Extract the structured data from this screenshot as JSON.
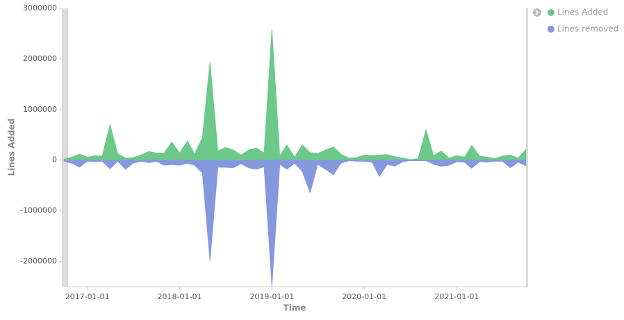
{
  "chart_data": {
    "type": "area",
    "xlabel": "Time",
    "ylabel": "Lines Added",
    "x": [
      "2016-10-01",
      "2016-11-01",
      "2016-12-01",
      "2017-01-01",
      "2017-02-01",
      "2017-03-01",
      "2017-04-01",
      "2017-05-01",
      "2017-06-01",
      "2017-07-01",
      "2017-08-01",
      "2017-09-01",
      "2017-10-01",
      "2017-11-01",
      "2017-12-01",
      "2018-01-01",
      "2018-02-01",
      "2018-03-01",
      "2018-04-01",
      "2018-05-01",
      "2018-06-01",
      "2018-07-01",
      "2018-08-01",
      "2018-09-01",
      "2018-10-01",
      "2018-11-01",
      "2018-12-01",
      "2019-01-01",
      "2019-02-01",
      "2019-03-01",
      "2019-04-01",
      "2019-05-01",
      "2019-06-01",
      "2019-07-01",
      "2019-08-01",
      "2019-09-01",
      "2019-10-01",
      "2019-11-01",
      "2019-12-01",
      "2020-01-01",
      "2020-02-01",
      "2020-03-01",
      "2020-04-01",
      "2020-05-01",
      "2020-06-01",
      "2020-07-01",
      "2020-08-01",
      "2020-09-01",
      "2020-10-01",
      "2020-11-01",
      "2020-12-01",
      "2021-01-01",
      "2021-02-01",
      "2021-03-01",
      "2021-04-01",
      "2021-05-01",
      "2021-06-01",
      "2021-07-01",
      "2021-08-01",
      "2021-09-01",
      "2021-10-01"
    ],
    "series": [
      {
        "name": "Lines Added",
        "color": "#6cc98a",
        "values": [
          20000,
          60000,
          120000,
          60000,
          90000,
          80000,
          700000,
          130000,
          40000,
          50000,
          100000,
          170000,
          140000,
          140000,
          360000,
          140000,
          380000,
          120000,
          450000,
          1930000,
          180000,
          250000,
          200000,
          100000,
          200000,
          240000,
          140000,
          2580000,
          80000,
          300000,
          60000,
          300000,
          150000,
          130000,
          200000,
          260000,
          120000,
          40000,
          50000,
          100000,
          90000,
          100000,
          110000,
          70000,
          40000,
          10000,
          30000,
          600000,
          90000,
          180000,
          40000,
          90000,
          60000,
          290000,
          80000,
          60000,
          30000,
          80000,
          100000,
          40000,
          210000
        ]
      },
      {
        "name": "Lines removed",
        "color": "#8598de",
        "values": [
          -20000,
          -60000,
          -140000,
          -20000,
          -30000,
          -20000,
          -170000,
          -20000,
          -180000,
          -60000,
          -20000,
          -50000,
          -20000,
          -100000,
          -90000,
          -100000,
          -60000,
          -100000,
          -250000,
          -1980000,
          -140000,
          -140000,
          -150000,
          -70000,
          -150000,
          -180000,
          -130000,
          -2480000,
          -80000,
          -180000,
          -60000,
          -220000,
          -640000,
          -80000,
          -180000,
          -290000,
          -60000,
          -10000,
          -20000,
          -20000,
          -40000,
          -320000,
          -80000,
          -120000,
          -30000,
          -10000,
          -10000,
          -10000,
          -80000,
          -120000,
          -100000,
          -30000,
          -40000,
          -160000,
          -30000,
          -40000,
          -20000,
          -20000,
          -150000,
          -40000,
          -110000
        ]
      }
    ],
    "xlim": [
      "2016-09-25",
      "2021-10-10"
    ],
    "xticks": [
      "2017-01-01",
      "2018-01-01",
      "2019-01-01",
      "2020-01-01",
      "2021-01-01"
    ],
    "ylim": [
      -2500000,
      3000000
    ],
    "yticks": [
      -2000000,
      -1000000,
      0,
      1000000,
      2000000,
      3000000
    ],
    "legend": "top-right"
  }
}
